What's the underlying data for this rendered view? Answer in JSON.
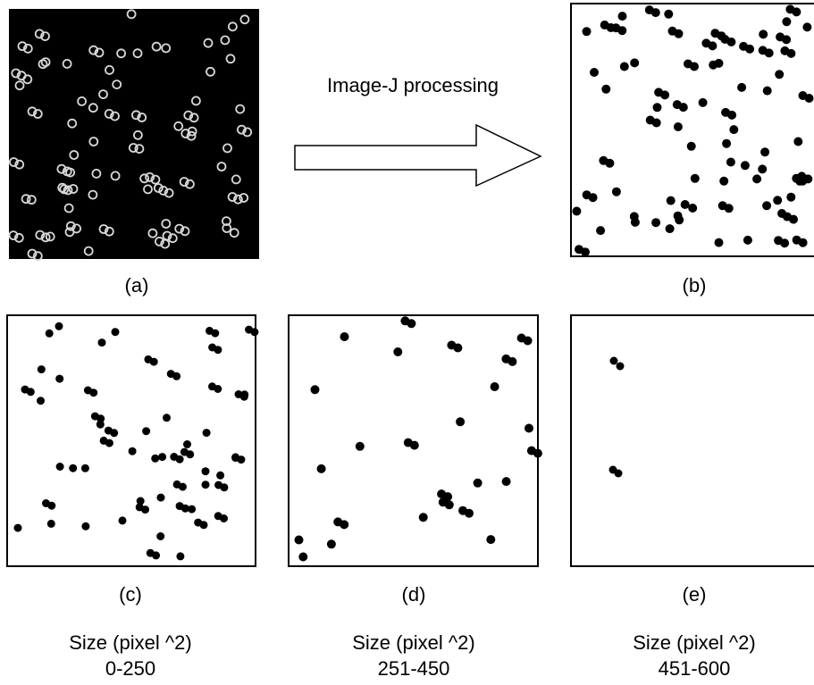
{
  "process_label": "Image-J processing",
  "panels": [
    {
      "label": "(a)"
    },
    {
      "label": "(b)"
    },
    {
      "label": "(c)",
      "size_title": "Size (pixel ^2)",
      "size_range": "0-250"
    },
    {
      "label": "(d)",
      "size_title": "Size (pixel ^2)",
      "size_range": "251-450"
    },
    {
      "label": "(e)",
      "size_title": "Size (pixel ^2)",
      "size_range": "451-600"
    }
  ]
}
